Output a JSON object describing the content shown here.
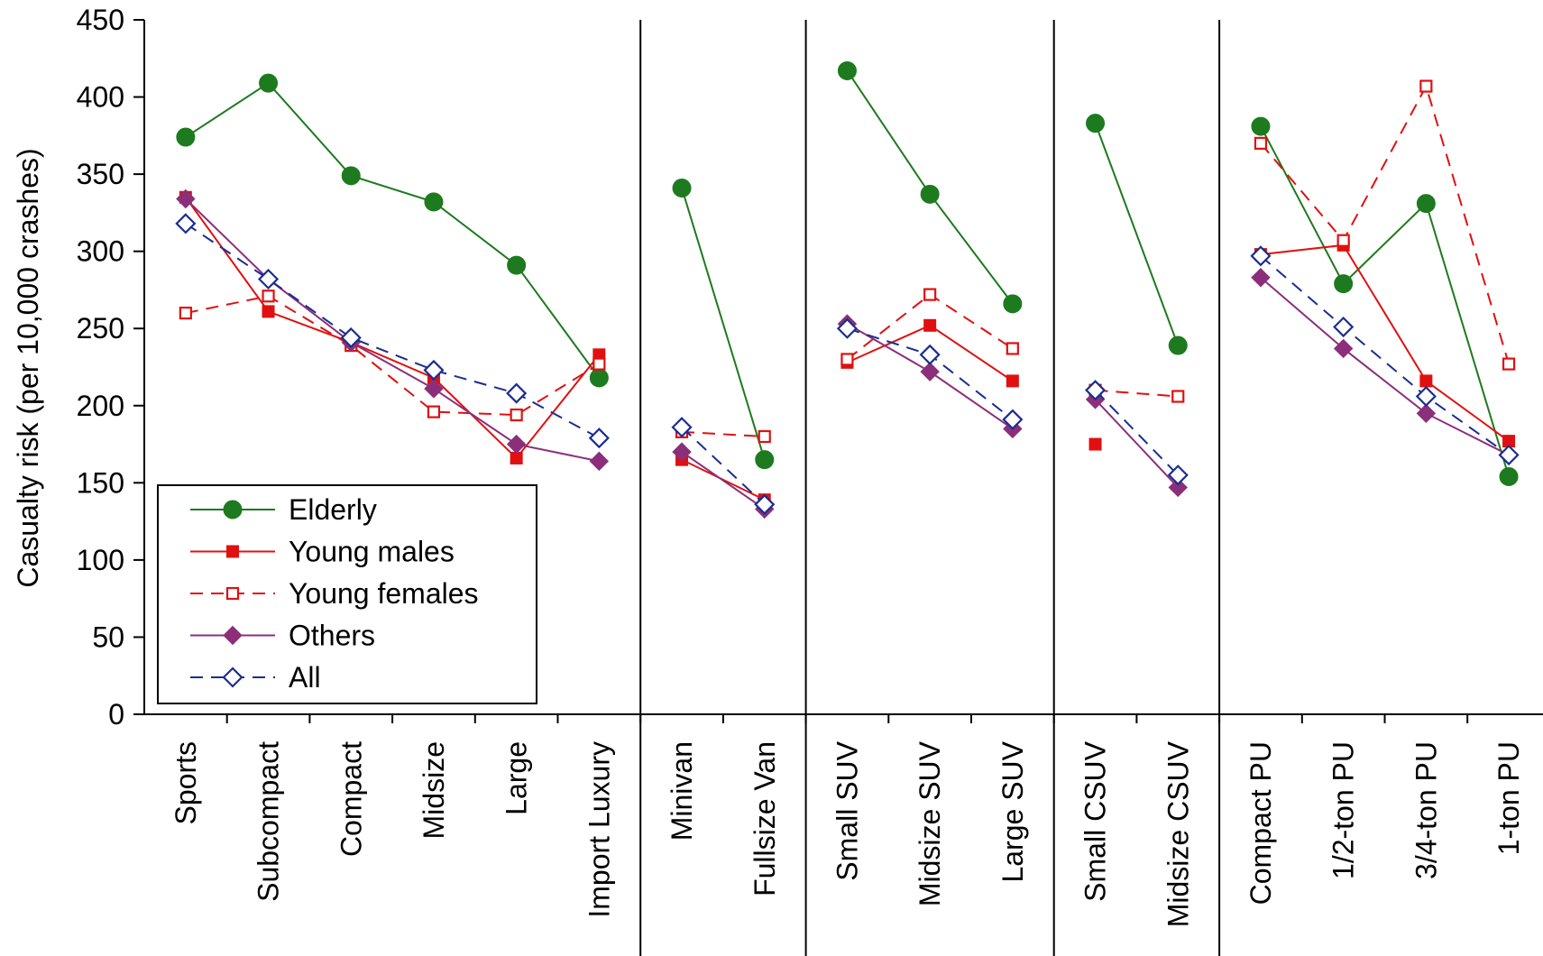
{
  "chart_data": {
    "type": "line",
    "ylabel": "Casualty risk (per 10,000 crashes)",
    "xlabel": "",
    "ylim": [
      0,
      450
    ],
    "yticks": [
      "0",
      "50",
      "100",
      "150",
      "200",
      "250",
      "300",
      "350",
      "400",
      "450"
    ],
    "grid": false,
    "legend_position": "bottom-left",
    "categories": [
      "Sports",
      "Subcompact",
      "Compact",
      "Midsize",
      "Large",
      "Import Luxury",
      "Minivan",
      "Fullsize Van",
      "Small SUV",
      "Midsize SUV",
      "Large SUV",
      "Small CSUV",
      "Midsize CSUV",
      "Compact PU",
      "1/2-ton PU",
      "3/4-ton PU",
      "1-ton PU"
    ],
    "groups": [
      {
        "start": 0,
        "end": 5
      },
      {
        "start": 6,
        "end": 7
      },
      {
        "start": 8,
        "end": 10
      },
      {
        "start": 11,
        "end": 12
      },
      {
        "start": 13,
        "end": 16
      }
    ],
    "series": [
      {
        "name": "Elderly",
        "color": "#1e7a1e",
        "dashed": false,
        "marker": "circle-filled",
        "values": [
          374,
          409,
          349,
          332,
          291,
          218,
          341,
          165,
          417,
          337,
          266,
          383,
          239,
          381,
          279,
          331,
          154
        ]
      },
      {
        "name": "Young males",
        "color": "#e01010",
        "dashed": false,
        "marker": "square-filled",
        "values": [
          335,
          261,
          241,
          218,
          166,
          233,
          165,
          139,
          228,
          252,
          216,
          175,
          null,
          298,
          304,
          216,
          177
        ]
      },
      {
        "name": "Young females",
        "color": "#e01010",
        "dashed": true,
        "marker": "square-open",
        "values": [
          260,
          271,
          239,
          196,
          194,
          227,
          183,
          180,
          230,
          272,
          237,
          210,
          206,
          370,
          307,
          407,
          227
        ]
      },
      {
        "name": "Others",
        "color": "#8b2f7a",
        "dashed": false,
        "marker": "diamond-filled",
        "values": [
          334,
          282,
          241,
          211,
          175,
          164,
          170,
          133,
          253,
          222,
          185,
          204,
          147,
          283,
          237,
          195,
          168
        ]
      },
      {
        "name": "All",
        "color": "#1a2e8f",
        "dashed": true,
        "marker": "diamond-open",
        "values": [
          318,
          282,
          244,
          223,
          208,
          179,
          186,
          136,
          250,
          233,
          191,
          210,
          155,
          297,
          251,
          206,
          168
        ]
      }
    ]
  }
}
